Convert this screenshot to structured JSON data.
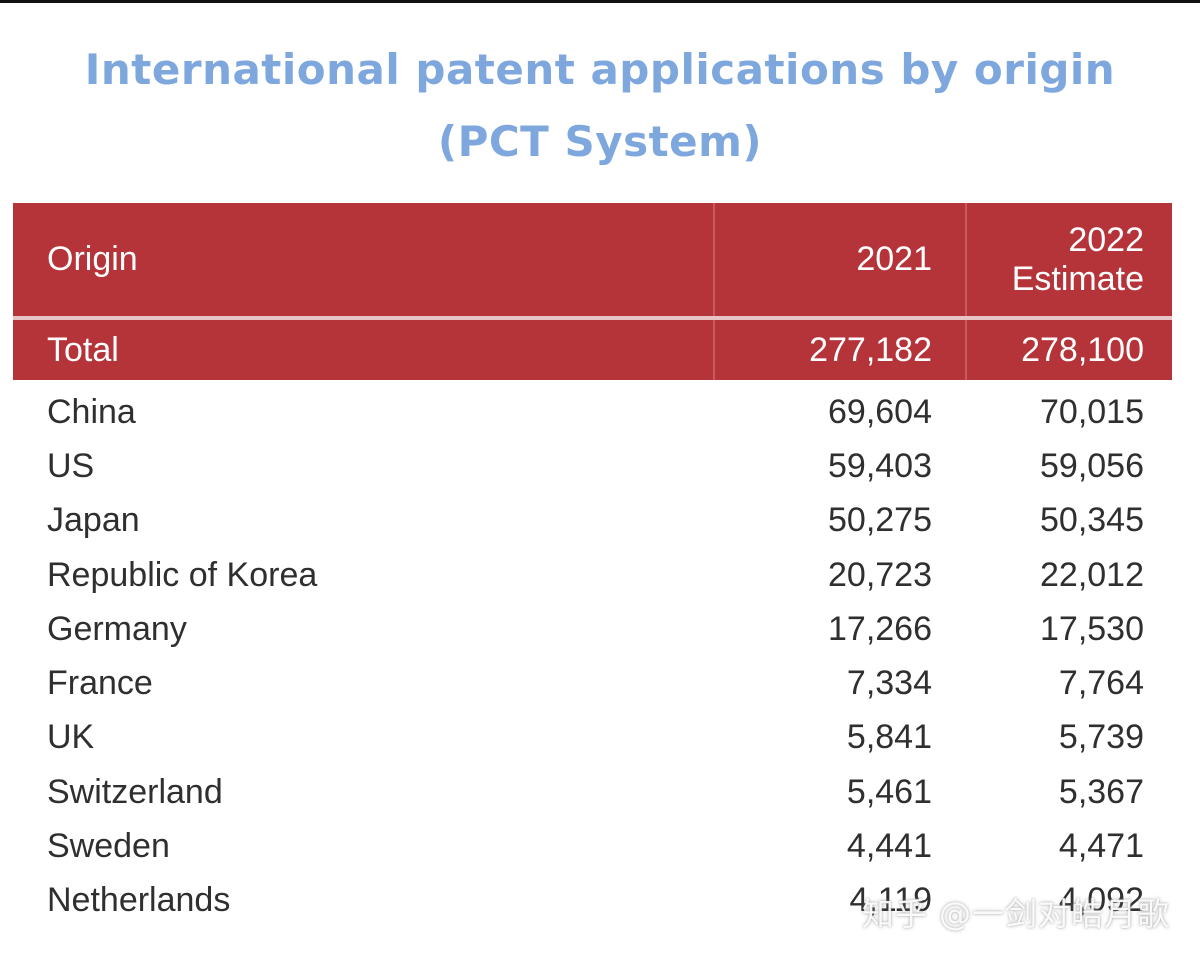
{
  "chart_data": {
    "type": "table",
    "title": "International patent applications by origin (PCT System)",
    "columns": [
      "Origin",
      "2021",
      "2022 Estimate"
    ],
    "header": {
      "origin": "Origin",
      "col_2021": "2021",
      "col_2022_line1": "2022",
      "col_2022_line2": "Estimate"
    },
    "total": {
      "origin": "Total",
      "v2021": "277,182",
      "v2022": "278,100"
    },
    "rows": [
      {
        "origin": "China",
        "v2021": "69,604",
        "v2022": "70,015"
      },
      {
        "origin": "US",
        "v2021": "59,403",
        "v2022": "59,056"
      },
      {
        "origin": "Japan",
        "v2021": "50,275",
        "v2022": "50,345"
      },
      {
        "origin": "Republic of Korea",
        "v2021": "20,723",
        "v2022": "22,012"
      },
      {
        "origin": "Germany",
        "v2021": "17,266",
        "v2022": "17,530"
      },
      {
        "origin": "France",
        "v2021": "7,334",
        "v2022": "7,764"
      },
      {
        "origin": "UK",
        "v2021": "5,841",
        "v2022": "5,739"
      },
      {
        "origin": "Switzerland",
        "v2021": "5,461",
        "v2022": "5,367"
      },
      {
        "origin": "Sweden",
        "v2021": "4,441",
        "v2022": "4,471"
      },
      {
        "origin": "Netherlands",
        "v2021": "4,119",
        "v2022": "4,092"
      }
    ]
  },
  "watermark": "知乎 @一剑对皓月歌",
  "colors": {
    "title": "#7ea7de",
    "header_bg": "#b5343a",
    "header_text": "#ffffff",
    "body_text": "#2f2f2f"
  }
}
